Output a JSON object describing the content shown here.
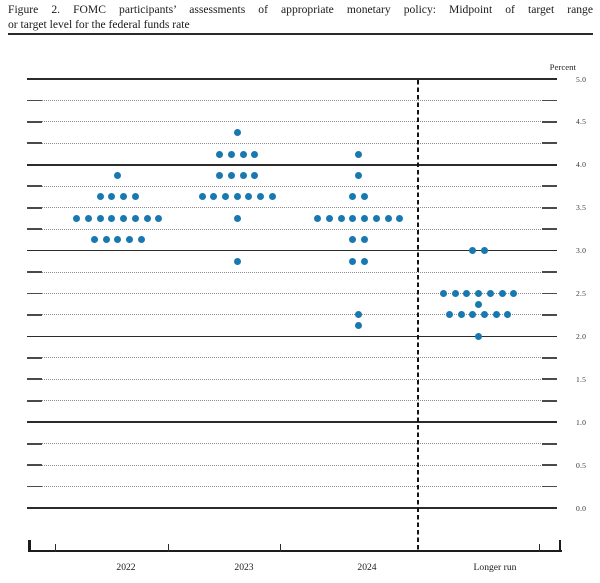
{
  "header": {
    "title_line1": "Figure 2.  FOMC participants’ assessments of appropriate monetary policy:  Midpoint of target range",
    "title_line2": "or target level for the federal funds rate"
  },
  "chart_data": {
    "type": "scatter",
    "title": "FOMC participants’ assessments of appropriate monetary policy: Midpoint of target range or target level for the federal funds rate",
    "ylabel": "Percent",
    "ylim": [
      0.0,
      5.0
    ],
    "gridline_interval": 0.25,
    "y_label_interval": 0.5,
    "y_tick_labels": [
      "5.0",
      "4.5",
      "4.0",
      "3.5",
      "3.0",
      "2.5",
      "2.0",
      "1.5",
      "1.0",
      "0.5",
      "0.0"
    ],
    "grid": "solid lines at whole percents, dotted lines at quarter percents",
    "legend_position": "none",
    "categories": [
      "2022",
      "2023",
      "2024",
      "Longer run"
    ],
    "divider_after_category": "2024",
    "dot_color": "#1878b0",
    "series": [
      {
        "name": "2022",
        "dots": [
          {
            "rate": 3.875,
            "count": 1
          },
          {
            "rate": 3.625,
            "count": 4
          },
          {
            "rate": 3.375,
            "count": 8
          },
          {
            "rate": 3.125,
            "count": 5
          }
        ]
      },
      {
        "name": "2023",
        "dots": [
          {
            "rate": 4.375,
            "count": 1
          },
          {
            "rate": 4.125,
            "count": 4
          },
          {
            "rate": 3.875,
            "count": 4
          },
          {
            "rate": 3.625,
            "count": 7
          },
          {
            "rate": 3.375,
            "count": 1
          },
          {
            "rate": 2.875,
            "count": 1
          }
        ]
      },
      {
        "name": "2024",
        "dots": [
          {
            "rate": 4.125,
            "count": 1
          },
          {
            "rate": 3.875,
            "count": 1
          },
          {
            "rate": 3.625,
            "count": 2
          },
          {
            "rate": 3.375,
            "count": 8
          },
          {
            "rate": 3.125,
            "count": 2
          },
          {
            "rate": 2.875,
            "count": 2
          },
          {
            "rate": 2.25,
            "count": 1
          },
          {
            "rate": 2.125,
            "count": 1
          }
        ]
      },
      {
        "name": "Longer run",
        "dots": [
          {
            "rate": 3.0,
            "count": 2
          },
          {
            "rate": 2.5,
            "count": 7
          },
          {
            "rate": 2.375,
            "count": 1
          },
          {
            "rate": 2.25,
            "count": 6
          },
          {
            "rate": 2.0,
            "count": 1
          }
        ]
      }
    ]
  }
}
